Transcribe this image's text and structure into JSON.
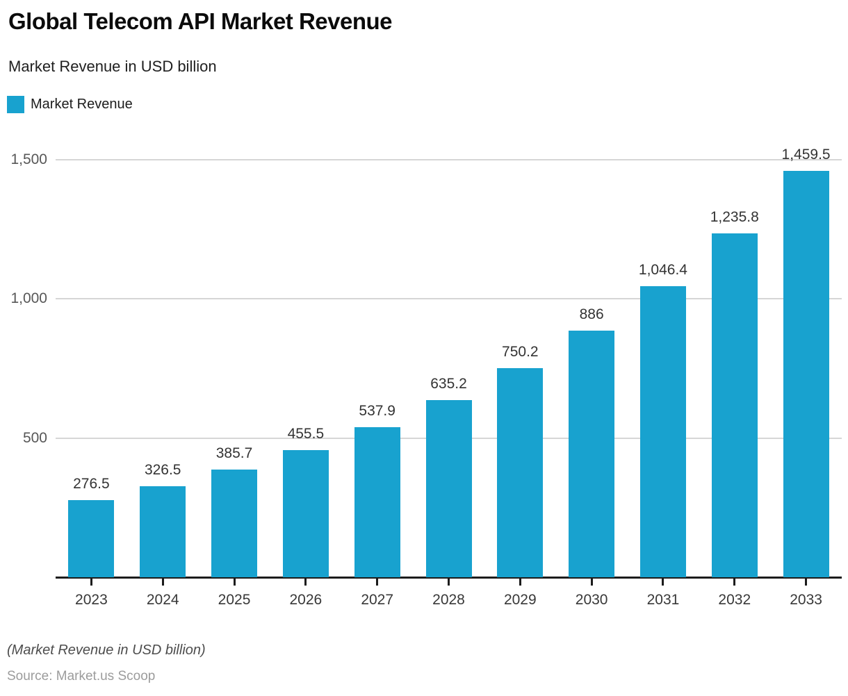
{
  "page": {
    "title": "Global Telecom API Market Revenue",
    "subtitle": "Market Revenue in USD billion",
    "footnote": "(Market Revenue in USD billion)",
    "source": "Source: Market.us Scoop"
  },
  "legend": {
    "label": "Market Revenue",
    "color": "#18A2CF"
  },
  "chart_data": {
    "type": "bar",
    "title": "Global Telecom API Market Revenue",
    "subtitle": "Market Revenue in USD billion",
    "categories": [
      "2023",
      "2024",
      "2025",
      "2026",
      "2027",
      "2028",
      "2029",
      "2030",
      "2031",
      "2032",
      "2033"
    ],
    "series": [
      {
        "name": "Market Revenue",
        "values": [
          276.5,
          326.5,
          385.7,
          455.5,
          537.9,
          635.2,
          750.2,
          886,
          1046.4,
          1235.8,
          1459.5
        ]
      }
    ],
    "value_labels": [
      "276.5",
      "326.5",
      "385.7",
      "455.5",
      "537.9",
      "635.2",
      "750.2",
      "886",
      "1,046.4",
      "1,235.8",
      "1,459.5"
    ],
    "xlabel": "",
    "ylabel": "",
    "ylim": [
      0,
      1500
    ],
    "yticks": [
      {
        "value": 500,
        "label": "500"
      },
      {
        "value": 1000,
        "label": "1,000"
      },
      {
        "value": 1500,
        "label": "1,500"
      }
    ],
    "grid": true,
    "legend_position": "top-left",
    "bar_color": "#18A2CF",
    "grid_color": "#d6d6d6",
    "axis_color": "#1c1c1c",
    "footnote": "(Market Revenue in USD billion)",
    "source": "Source: Market.us Scoop"
  }
}
